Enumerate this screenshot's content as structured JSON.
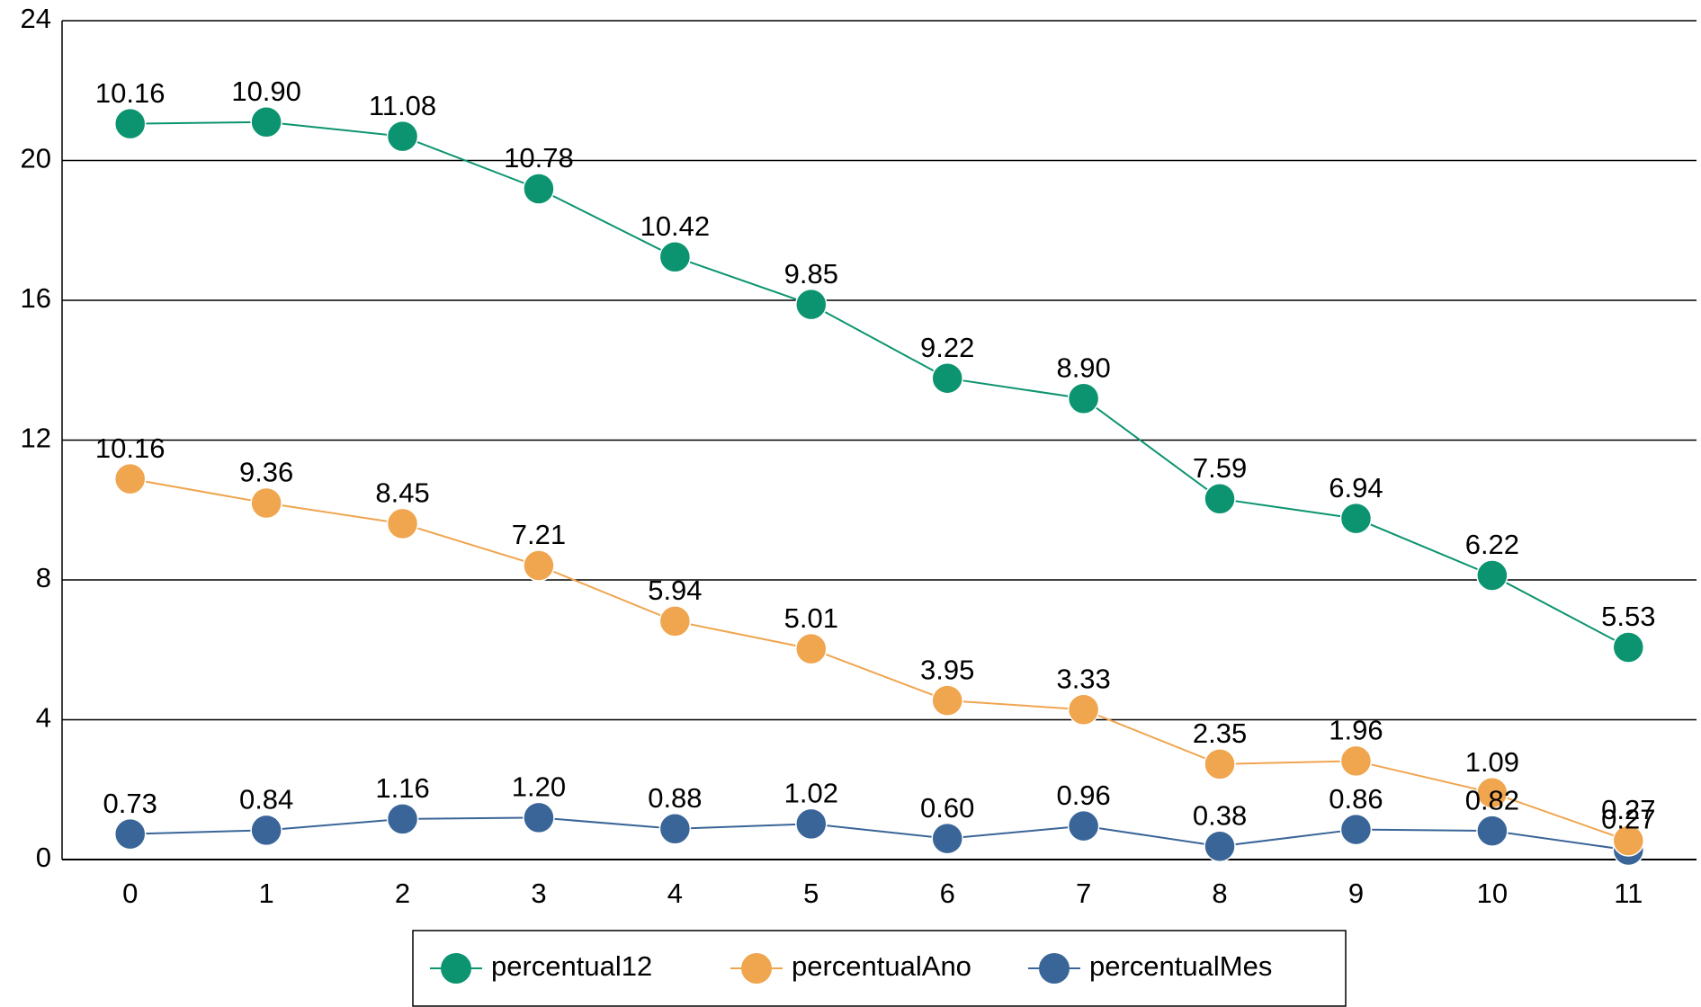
{
  "chart_data": {
    "type": "line",
    "stacked": true,
    "categories": [
      "0",
      "1",
      "2",
      "3",
      "4",
      "5",
      "6",
      "7",
      "8",
      "9",
      "10",
      "11"
    ],
    "series": [
      {
        "name": "percentual12",
        "color": "#0c9470",
        "values": [
          10.16,
          10.9,
          11.08,
          10.78,
          10.42,
          9.85,
          9.22,
          8.9,
          7.59,
          6.94,
          6.22,
          5.53
        ],
        "value_labels": [
          "10.16",
          "10.90",
          "11.08",
          "10.78",
          "10.42",
          "9.85",
          "9.22",
          "8.90",
          "7.59",
          "6.94",
          "6.22",
          "5.53"
        ]
      },
      {
        "name": "percentualAno",
        "color": "#f0a54f",
        "values": [
          10.16,
          9.36,
          8.45,
          7.21,
          5.94,
          5.01,
          3.95,
          3.33,
          2.35,
          1.96,
          1.09,
          0.27
        ],
        "value_labels": [
          "10.16",
          "9.36",
          "8.45",
          "7.21",
          "5.94",
          "5.01",
          "3.95",
          "3.33",
          "2.35",
          "1.96",
          "1.09",
          "0.27"
        ]
      },
      {
        "name": "percentualMes",
        "color": "#3a6598",
        "values": [
          0.73,
          0.84,
          1.16,
          1.2,
          0.88,
          1.02,
          0.6,
          0.96,
          0.38,
          0.86,
          0.82,
          0.27
        ],
        "value_labels": [
          "0.73",
          "0.84",
          "1.16",
          "1.20",
          "0.88",
          "1.02",
          "0.60",
          "0.96",
          "0.38",
          "0.86",
          "0.82",
          "0.27"
        ]
      }
    ],
    "ylim": [
      0,
      24
    ],
    "yticks": [
      0,
      4,
      8,
      12,
      16,
      20,
      24
    ],
    "grid": true,
    "legend": "bottom"
  }
}
